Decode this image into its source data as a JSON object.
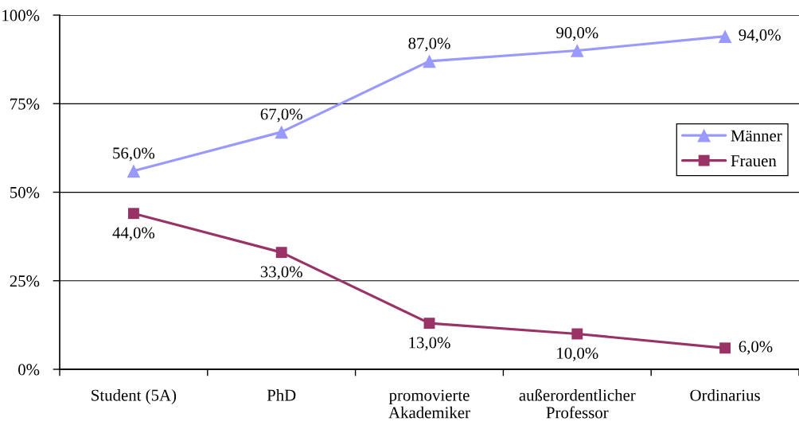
{
  "chart_data": {
    "type": "line",
    "categories": [
      "Student (5A)",
      "PhD",
      "promovierte\nAkademiker",
      "außerordentlicher\nProfessor",
      "Ordinarius"
    ],
    "series": [
      {
        "name": "Männer",
        "color": "#9999ff",
        "marker": "triangle",
        "values": [
          56,
          67,
          87,
          90,
          94
        ],
        "value_labels": [
          "56,0%",
          "67,0%",
          "87,0%",
          "90,0%",
          "94,0%"
        ]
      },
      {
        "name": "Frauen",
        "color": "#993366",
        "marker": "square",
        "values": [
          44,
          33,
          13,
          10,
          6
        ],
        "value_labels": [
          "44,0%",
          "33,0%",
          "13,0%",
          "10,0%",
          "6,0%"
        ]
      }
    ],
    "ylim": [
      0,
      100
    ],
    "yticks": [
      {
        "value": 0,
        "label": "0%"
      },
      {
        "value": 25,
        "label": "25%"
      },
      {
        "value": 50,
        "label": "50%"
      },
      {
        "value": 75,
        "label": "75%"
      },
      {
        "value": 100,
        "label": "100%"
      }
    ],
    "grid": "y",
    "legend": "right",
    "line_style": "solid"
  }
}
